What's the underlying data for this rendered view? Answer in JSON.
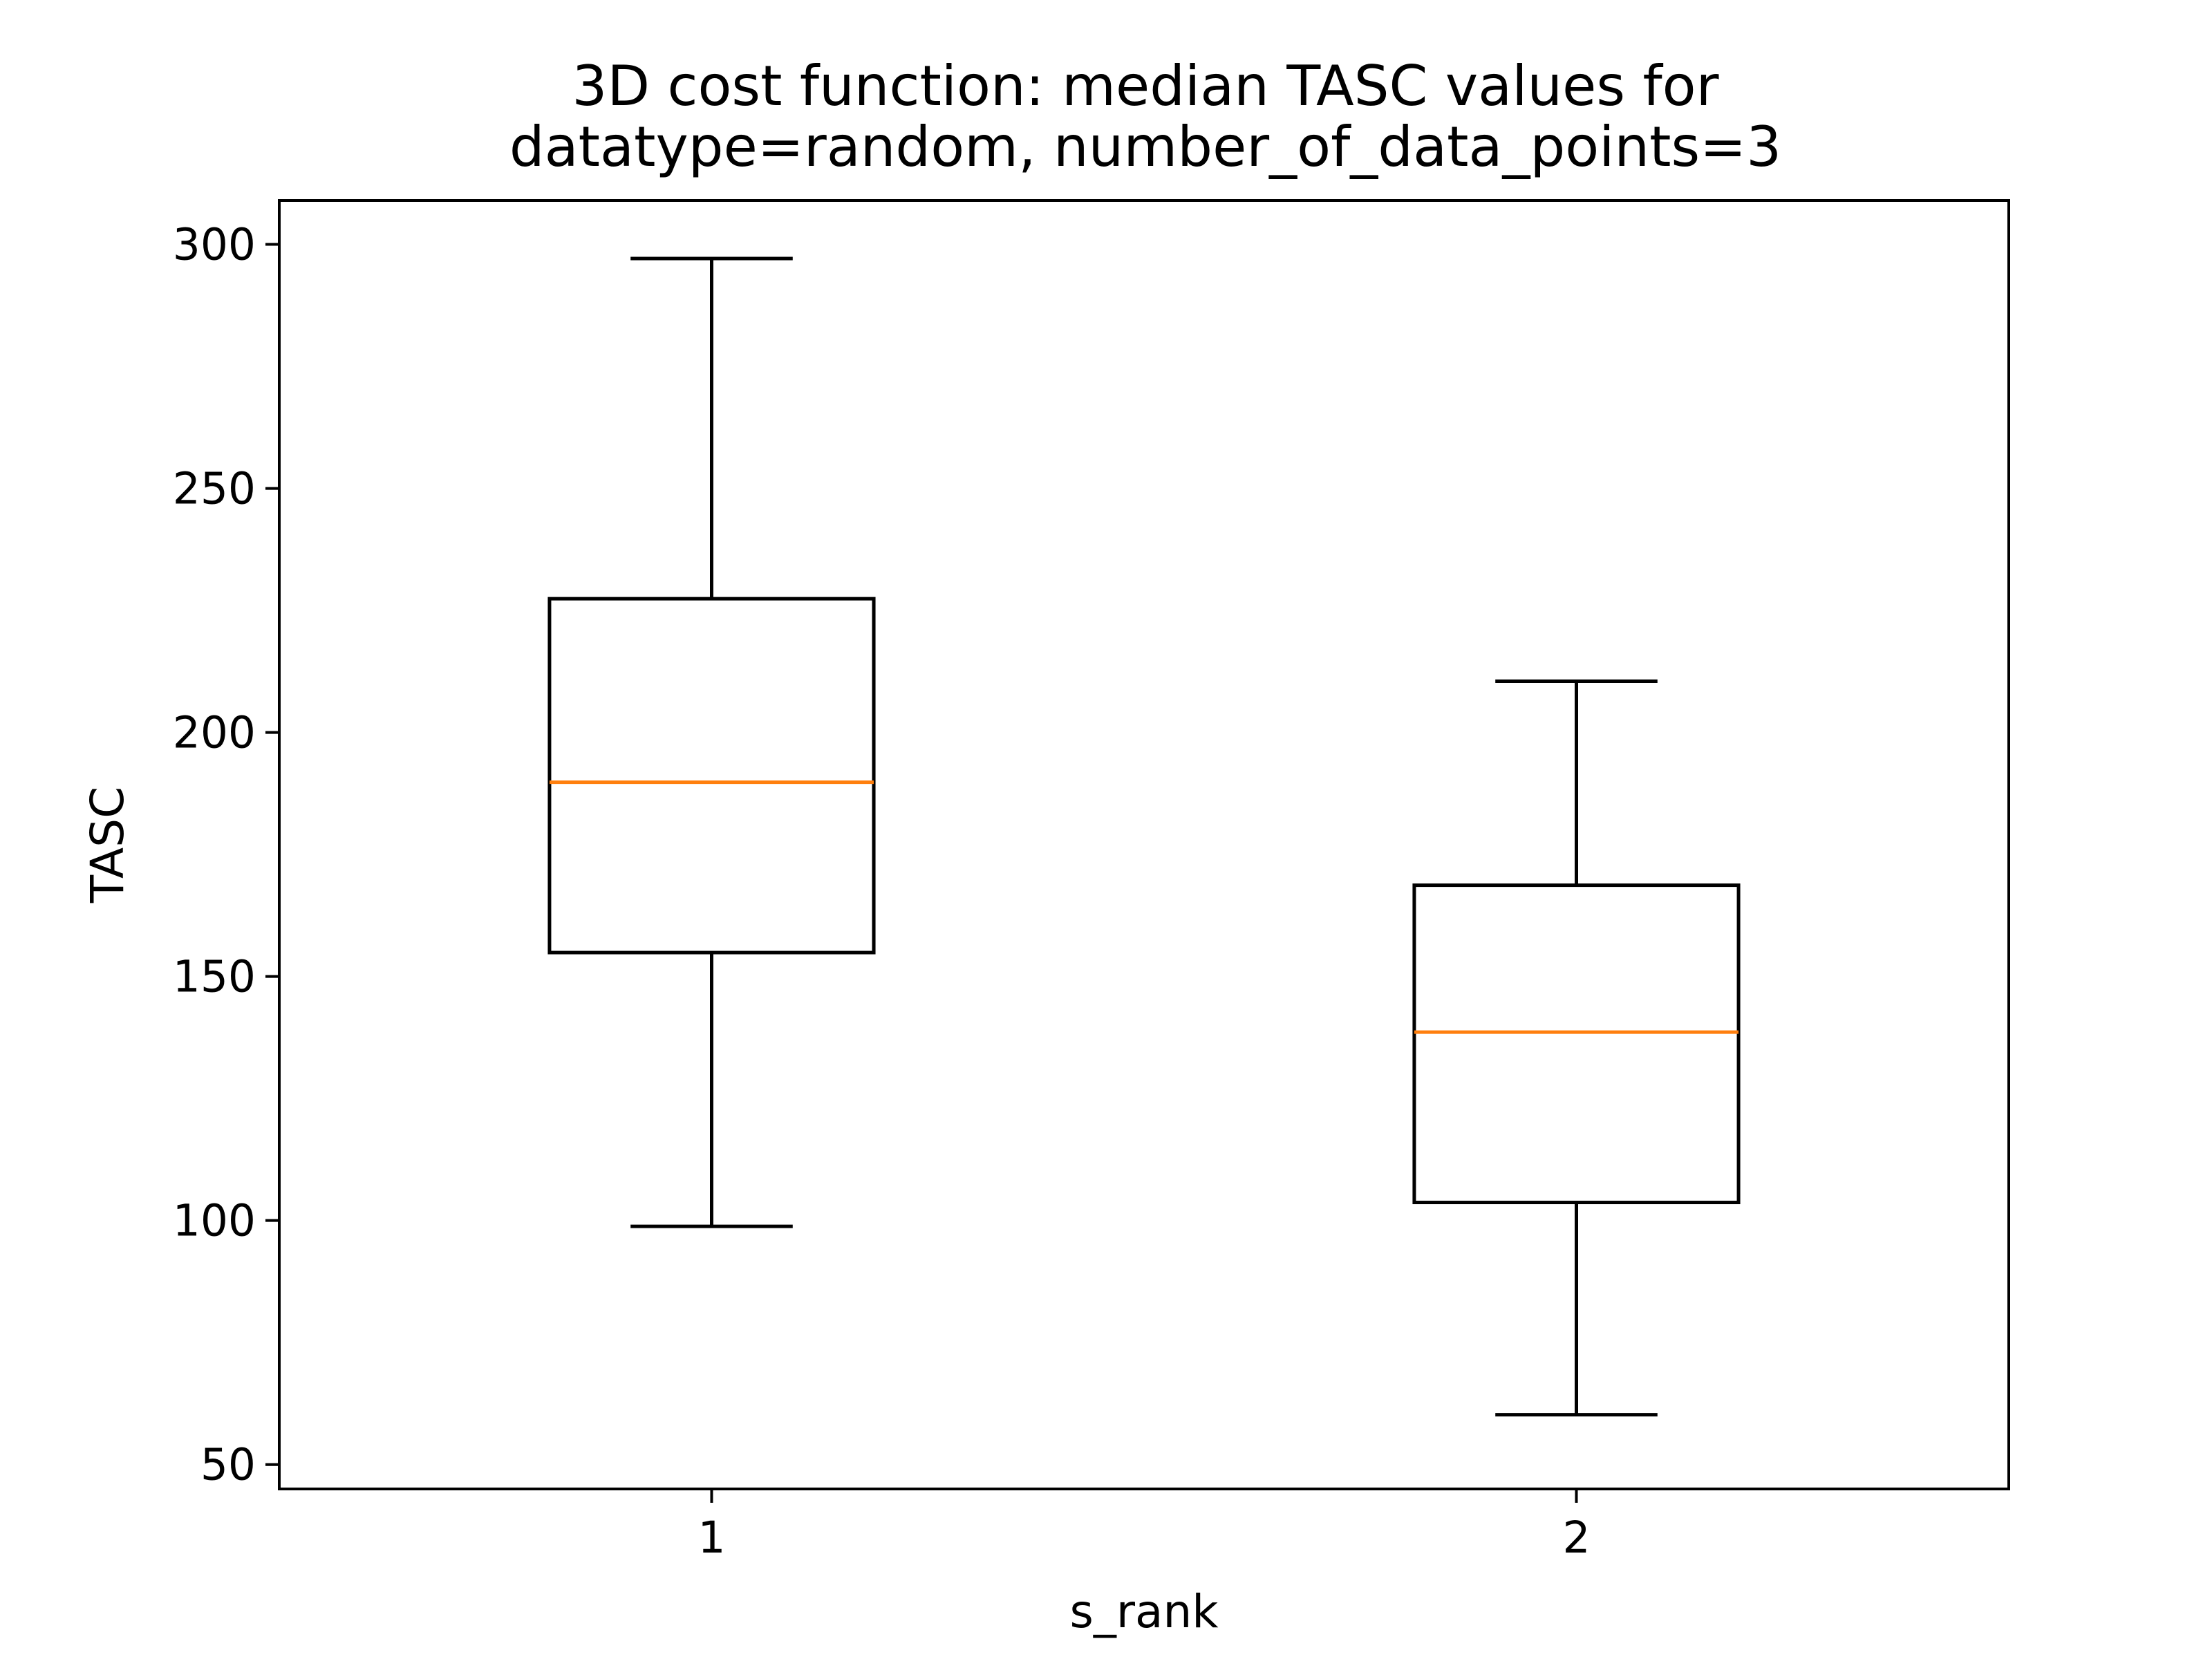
{
  "chart_data": {
    "type": "box",
    "title_lines": [
      "3D cost function: median TASC values for",
      "datatype=random, number_of_data_points=3"
    ],
    "xlabel": "s_rank",
    "ylabel": "TASC",
    "categories": [
      "1",
      "2"
    ],
    "ylim": [
      45,
      309
    ],
    "yticks": [
      50,
      100,
      150,
      200,
      250,
      300
    ],
    "grid": false,
    "legend": "none",
    "colors": {
      "box": "#000000",
      "median": "#ff7f0e",
      "background": "#ffffff"
    },
    "boxes": [
      {
        "category": "1",
        "whisker_low": 98.8,
        "q1": 154.9,
        "median": 189.8,
        "q3": 227.4,
        "whisker_high": 297.1
      },
      {
        "category": "2",
        "whisker_low": 60.2,
        "q1": 103.7,
        "median": 138.6,
        "q3": 168.7,
        "whisker_high": 210.5
      }
    ]
  }
}
